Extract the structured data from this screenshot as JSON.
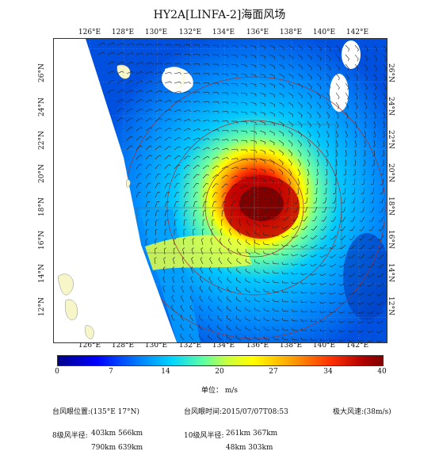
{
  "title": "HY2A[LINFA-2]海面风场",
  "map": {
    "lon_ticks": [
      "126°E",
      "128°E",
      "130°E",
      "132°E",
      "134°E",
      "136°E",
      "138°E",
      "140°E",
      "142°E"
    ],
    "lat_ticks": [
      "26°N",
      "24°N",
      "22°N",
      "20°N",
      "18°N",
      "16°N",
      "14°N",
      "12°N"
    ],
    "typhoon_center": {
      "lon": 135,
      "lat": 17
    }
  },
  "colorbar": {
    "ticks": [
      "0",
      "7",
      "14",
      "20",
      "27",
      "34",
      "40"
    ],
    "unit_label": "单位： m/s",
    "colors": [
      "#00008b",
      "#0000ff",
      "#0080ff",
      "#00d4ff",
      "#60ffa0",
      "#ffff00",
      "#ffa000",
      "#ff3000",
      "#800000"
    ]
  },
  "info": {
    "eye_position": "台风眼位置:(135°E  17°N)",
    "eye_time": "台风眼时间:2015/07/07T08:53",
    "max_wind": "极大风速:(38m/s)",
    "radius8_label": "8级风半径:",
    "radius8_row1": "403km    566km",
    "radius8_row2": "790km    639km",
    "radius10_label": "10级风半径:",
    "radius10_row1": "261km    367km",
    "radius10_row2": "48km    303km"
  }
}
